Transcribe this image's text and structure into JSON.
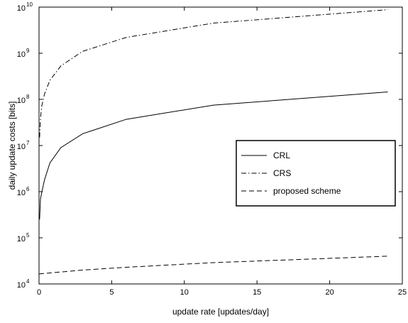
{
  "chart_data": {
    "type": "line",
    "title": "",
    "xlabel": "update rate [updates/day]",
    "ylabel": "daily update costs [bits]",
    "xlim": [
      0,
      25
    ],
    "ylim": [
      10000,
      10000000000
    ],
    "yscale": "log",
    "grid": false,
    "legend_position": "right-middle",
    "x_ticks": [
      {
        "value": 0,
        "label": "0"
      },
      {
        "value": 5,
        "label": "5"
      },
      {
        "value": 10,
        "label": "10"
      },
      {
        "value": 15,
        "label": "15"
      },
      {
        "value": 20,
        "label": "20"
      },
      {
        "value": 25,
        "label": "25"
      }
    ],
    "y_ticks": [
      {
        "value": 10000,
        "base": "10",
        "exp": "4"
      },
      {
        "value": 100000,
        "base": "10",
        "exp": "5"
      },
      {
        "value": 1000000,
        "base": "10",
        "exp": "6"
      },
      {
        "value": 10000000,
        "base": "10",
        "exp": "7"
      },
      {
        "value": 100000000,
        "base": "10",
        "exp": "8"
      },
      {
        "value": 1000000000,
        "base": "10",
        "exp": "9"
      },
      {
        "value": 10000000000,
        "base": "10",
        "exp": "10"
      }
    ],
    "series": [
      {
        "name": "CRL",
        "style": "solid",
        "color": "#000000",
        "x": [
          0.04,
          0.1,
          0.2,
          0.375,
          0.75,
          1.5,
          3,
          6,
          12,
          24
        ],
        "y": [
          250000,
          700000,
          1000000,
          1800000,
          4200000,
          9000000,
          18000000,
          37000000,
          75000000,
          145000000
        ]
      },
      {
        "name": "CRS",
        "style": "dashdot",
        "color": "#000000",
        "x": [
          0.04,
          0.1,
          0.2,
          0.375,
          0.75,
          1.5,
          3,
          6,
          12,
          24
        ],
        "y": [
          15000000,
          40000000,
          75000000,
          130000000,
          260000000,
          530000000,
          1100000000,
          2200000000,
          4500000000,
          8800000000
        ]
      },
      {
        "name": "proposed scheme",
        "style": "dashed",
        "color": "#000000",
        "x": [
          0,
          3,
          6,
          12,
          18,
          24
        ],
        "y": [
          16500,
          20000,
          23000,
          29000,
          34000,
          40000
        ]
      }
    ]
  }
}
